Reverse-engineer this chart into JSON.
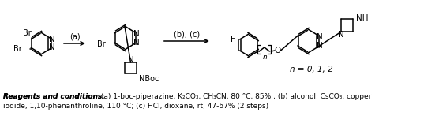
{
  "background_color": "#ffffff",
  "caption_bold": "Reagents and conditions:",
  "caption_rest_line1": " (a) 1-boc-piperazine, K₂CO₃, CH₃CN, 80 °C, 85% ; (b) alcohol, CsCO₃, copper",
  "caption_line2": "iodide, 1,10-phenanthroline, 110 °C; (c) HCl, dioxane, rt, 47-67% (2 steps)",
  "n_label": "n = 0, 1, 2",
  "step_a": "(a)",
  "step_bc": "(b), (c)",
  "fig_width": 5.37,
  "fig_height": 1.66,
  "dpi": 100
}
